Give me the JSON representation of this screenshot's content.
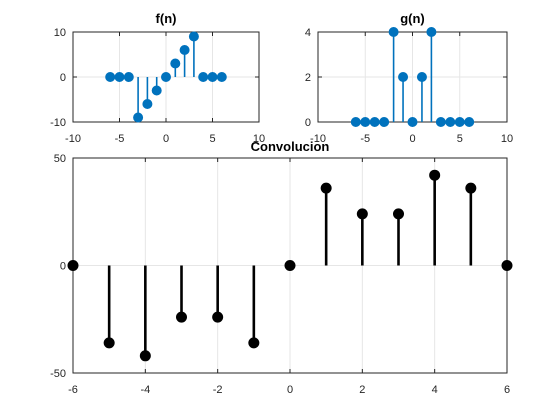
{
  "colors": {
    "background": "#ffffff",
    "axes_frame": "#262626",
    "grid": "#e6e6e6",
    "stem_blue": "#0072BD",
    "stem_black": "#000000"
  },
  "chart_data": [
    {
      "type": "stem",
      "title": "f(n)",
      "color": "#0072BD",
      "grid": true,
      "xlim": [
        -10,
        10
      ],
      "ylim": [
        -10,
        10
      ],
      "xticks": [
        -10,
        -5,
        0,
        5,
        10
      ],
      "yticks": [
        -10,
        0,
        10
      ],
      "x": [
        -6,
        -5,
        -4,
        -3,
        -2,
        -1,
        0,
        1,
        2,
        3,
        4,
        5,
        6
      ],
      "values": [
        0,
        0,
        0,
        -9,
        -6,
        -3,
        0,
        3,
        6,
        9,
        0,
        0,
        0
      ]
    },
    {
      "type": "stem",
      "title": "g(n)",
      "color": "#0072BD",
      "grid": true,
      "xlim": [
        -10,
        10
      ],
      "ylim": [
        0,
        4
      ],
      "xticks": [
        -10,
        -5,
        0,
        5,
        10
      ],
      "yticks": [
        0,
        2,
        4
      ],
      "x": [
        -6,
        -5,
        -4,
        -3,
        -2,
        -1,
        0,
        1,
        2,
        3,
        4,
        5,
        6
      ],
      "values": [
        0,
        0,
        0,
        0,
        4,
        2,
        0,
        2,
        4,
        0,
        0,
        0,
        0
      ]
    },
    {
      "type": "stem",
      "title": "Convolucion",
      "color": "#000000",
      "grid": true,
      "xlim": [
        -6,
        6
      ],
      "ylim": [
        -50,
        50
      ],
      "xticks": [
        -6,
        -4,
        -2,
        0,
        2,
        4,
        6
      ],
      "yticks": [
        -50,
        0,
        50
      ],
      "x": [
        -6,
        -5,
        -4,
        -3,
        -2,
        -1,
        0,
        1,
        2,
        3,
        4,
        5,
        6
      ],
      "values": [
        0,
        -36,
        -42,
        -24,
        -24,
        -36,
        0,
        36,
        24,
        24,
        42,
        36,
        0
      ]
    }
  ]
}
